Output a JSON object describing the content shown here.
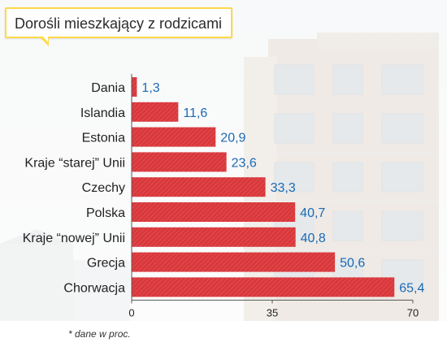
{
  "title": "Dorośli mieszkający z rodzicami",
  "footnote": "* dane w proc.",
  "colors": {
    "bar": "#d8383c",
    "value_label": "#1a6ab5",
    "accent": "#ffd94a"
  },
  "chart_data": {
    "type": "bar",
    "orientation": "horizontal",
    "title": "Dorośli mieszkający z rodzicami",
    "categories": [
      "Dania",
      "Islandia",
      "Estonia",
      "Kraje “starej” Unii",
      "Czechy",
      "Polska",
      "Kraje “nowej” Unii",
      "Grecja",
      "Chorwacja"
    ],
    "values": [
      1.3,
      11.6,
      20.9,
      23.6,
      33.3,
      40.7,
      40.8,
      50.6,
      65.4
    ],
    "value_labels": [
      "1,3",
      "11,6",
      "20,9",
      "23,6",
      "33,3",
      "40,7",
      "40,8",
      "50,6",
      "65,4"
    ],
    "xlim": [
      0,
      70
    ],
    "xticks": [
      "0",
      "35",
      "70"
    ],
    "grid": false,
    "legend": "none"
  }
}
